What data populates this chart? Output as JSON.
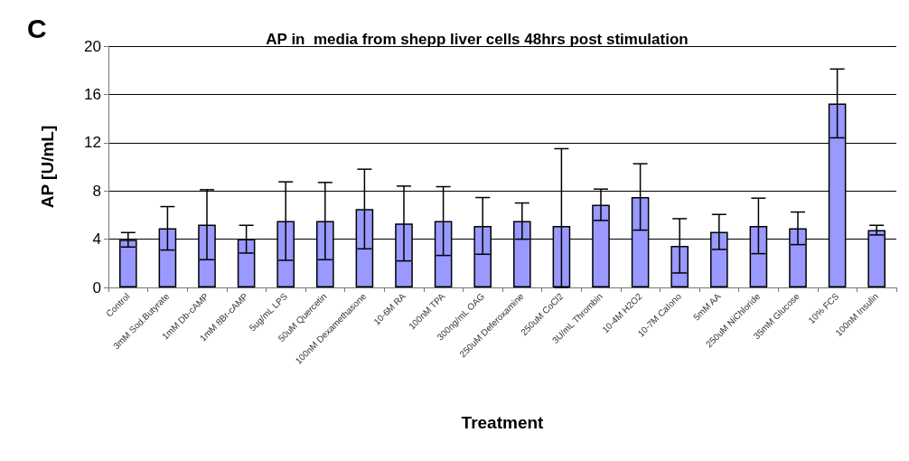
{
  "chart_data": {
    "type": "bar",
    "title": "AP in  media from shepp liver cells 48hrs post stimulation",
    "xlabel": "Treatment",
    "ylabel": "AP [U/mL]",
    "annotations": [
      "C"
    ],
    "categories": [
      "Control",
      "3mM Sod.Butyrate",
      "1mM Db-cAMP",
      "1mM 8Br-cAMP",
      "5ug/mL LPS",
      "50uM Quercetin",
      "100nM Dexamethasone",
      "10-6M RA",
      "100nM TPA",
      "300ng/mL OAG",
      "250uM Deferoxamine",
      "250uM CoCl2",
      "3U/mL Thrombin",
      "10-4M H2O2",
      "10-7M CaIono",
      "5mM AA",
      "250uM NiChloride",
      "35mM Glucose",
      "10% FCS",
      "100nM Insulin"
    ],
    "values": [
      3.95,
      4.9,
      5.2,
      4.0,
      5.5,
      5.5,
      6.5,
      5.3,
      5.5,
      5.1,
      5.5,
      5.1,
      6.85,
      7.5,
      3.45,
      4.6,
      5.1,
      4.9,
      15.25,
      4.75
    ],
    "errors": [
      0.6,
      1.8,
      2.9,
      1.15,
      3.25,
      3.2,
      3.3,
      3.1,
      2.85,
      2.35,
      1.5,
      [
        0,
        11.5
      ],
      1.3,
      2.75,
      2.25,
      1.45,
      2.3,
      1.35,
      2.85,
      0.4
    ],
    "color": "#9999ff",
    "ylim": [
      0,
      20
    ],
    "yticks": [
      0,
      4,
      8,
      12,
      16,
      20
    ],
    "grid": "y"
  }
}
